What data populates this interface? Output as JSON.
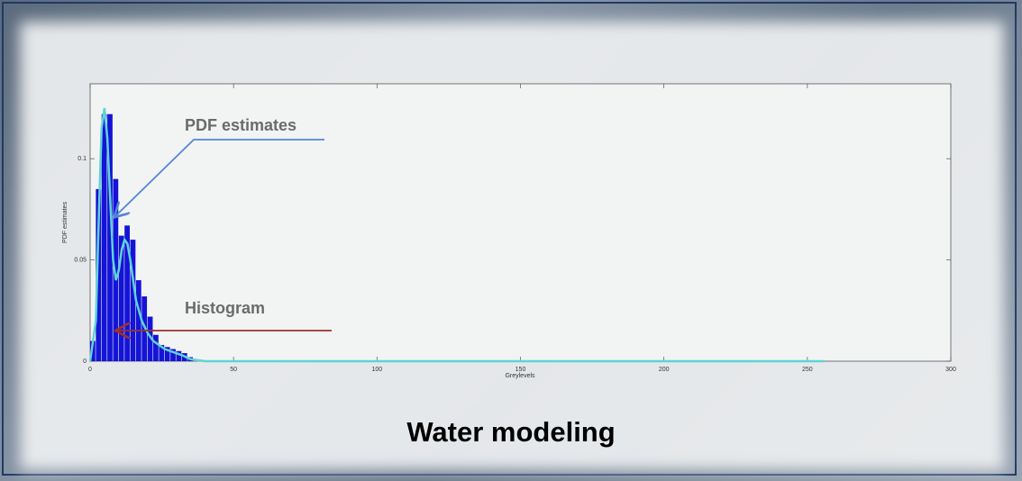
{
  "chart_data": {
    "type": "histogram",
    "x_label": "Greylevels",
    "y_label": "PDF estimates",
    "bins": [
      0,
      2,
      4,
      6,
      8,
      10,
      12,
      14,
      16,
      18,
      20,
      22,
      24,
      26,
      28,
      30,
      32,
      34,
      36
    ],
    "values": [
      0.01,
      0.085,
      0.122,
      0.122,
      0.09,
      0.062,
      0.067,
      0.06,
      0.04,
      0.032,
      0.022,
      0.013,
      0.008,
      0.007,
      0.006,
      0.005,
      0.004,
      0.002
    ],
    "color": "#1414d6",
    "curve": {
      "x": [
        0,
        2,
        3,
        4,
        5,
        6,
        7,
        8,
        9,
        10,
        11,
        12,
        13,
        14,
        15,
        16,
        18,
        20,
        22,
        24,
        26,
        28,
        30,
        32,
        35,
        40,
        50,
        100,
        150,
        200,
        256
      ],
      "values": [
        0,
        0.02,
        0.07,
        0.115,
        0.125,
        0.11,
        0.08,
        0.05,
        0.04,
        0.045,
        0.055,
        0.06,
        0.058,
        0.05,
        0.04,
        0.03,
        0.02,
        0.014,
        0.01,
        0.008,
        0.006,
        0.005,
        0.004,
        0.003,
        0.001,
        0,
        0,
        0,
        0,
        0,
        0
      ],
      "color": "#5fd3d8"
    },
    "xlim": [
      0,
      300
    ],
    "xticks": [
      0,
      50,
      100,
      150,
      200,
      250,
      300
    ],
    "ylim": [
      0,
      0.137
    ],
    "yticks": [
      0,
      0.05,
      0.1
    ],
    "annotations": [
      "PDF estimates",
      "Histogram"
    ]
  },
  "caption": "Water modeling"
}
